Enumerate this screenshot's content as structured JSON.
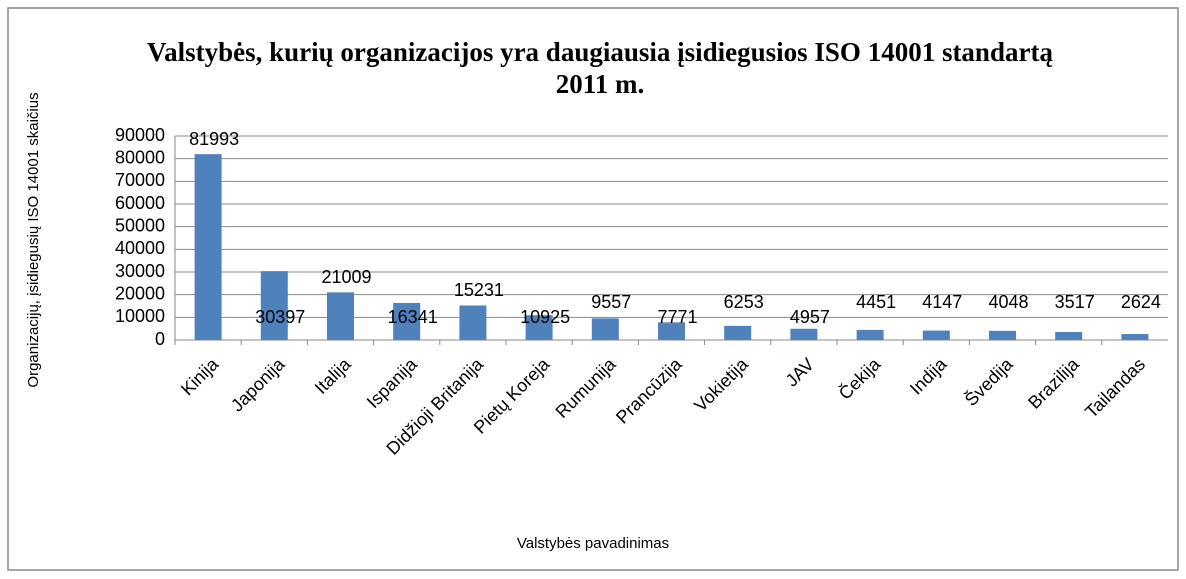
{
  "chart_data": {
    "type": "bar",
    "title": "Valstybės, kurių organizacijos yra daugiausia įsidiegusios ISO 14001 standartą 2011 m.",
    "x_label": "Valstybės pavadinimas",
    "y_label": "Organizacijų, įsidiegusių ISO 14001  skaičius",
    "categories": [
      "Kinija",
      "Japonija",
      "Italija",
      "Ispanija",
      "Didžioji Britanija",
      "Pietų Koreja",
      "Rumunija",
      "Prancūzija",
      "Vokietija",
      "JAV",
      "Čekija",
      "Indija",
      "Švedija",
      "Brazilija",
      "Tailandas"
    ],
    "values": [
      81993,
      30397,
      21009,
      16341,
      15231,
      10925,
      9557,
      7771,
      6253,
      4957,
      4451,
      4147,
      4048,
      3517,
      2624
    ],
    "color": "#4f81bd",
    "ylim": [
      0,
      90000
    ],
    "yticks": [
      0,
      10000,
      20000,
      30000,
      40000,
      50000,
      60000,
      70000,
      80000,
      90000
    ],
    "grid": true
  }
}
